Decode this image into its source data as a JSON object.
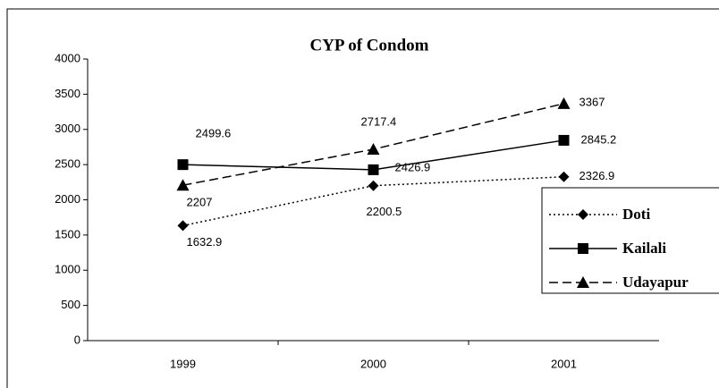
{
  "chart_data": {
    "type": "line",
    "title": "CYP of Condom",
    "categories": [
      "1999",
      "2000",
      "2001"
    ],
    "series": [
      {
        "name": "Doti",
        "color": "#000000",
        "dash": "dotted",
        "marker": "diamond",
        "values": [
          1632.9,
          2200.5,
          2326.9
        ]
      },
      {
        "name": "Kailali",
        "color": "#000000",
        "dash": "solid",
        "marker": "square",
        "values": [
          2499.6,
          2426.9,
          2845.2
        ]
      },
      {
        "name": "Udayapur",
        "color": "#000000",
        "dash": "dashed",
        "marker": "triangle",
        "values": [
          2207,
          2717.4,
          3367
        ]
      }
    ],
    "ylim": [
      0,
      4000
    ],
    "yticks": [
      0,
      500,
      1000,
      1500,
      2000,
      2500,
      3000,
      3500,
      4000
    ],
    "grid": false,
    "legend": "right"
  }
}
